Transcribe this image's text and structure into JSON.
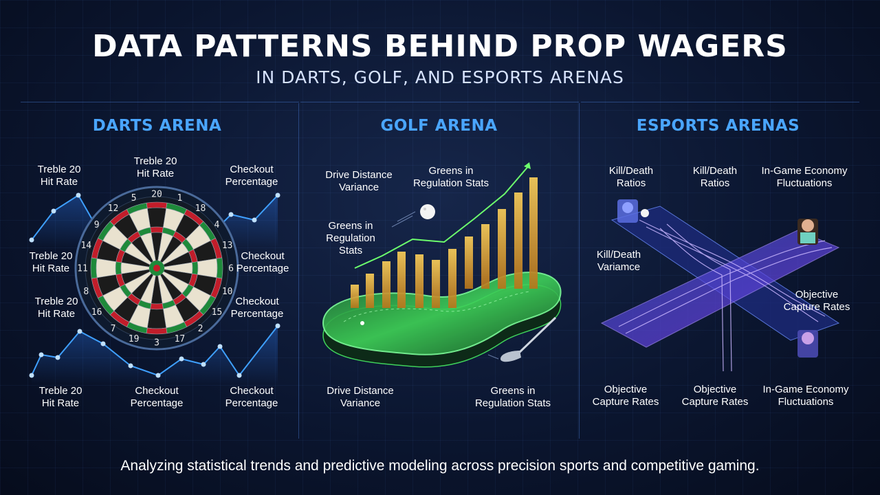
{
  "title": "DATA PATTERNS BEHIND PROP WAGERS",
  "subtitle": "IN DARTS, GOLF, AND ESPORTS ARENAS",
  "footer": "Analyzing statistical trends and predictive modeling across precision sports and competitive gaming.",
  "colors": {
    "accent": "#4aa6ff",
    "golf_green": "#3fd15a",
    "bar_gold": "#f0b13a",
    "esports_purple": "#8a5cff"
  },
  "darts": {
    "heading": "DARTS ARENA",
    "labels": [
      "Treble 20\nHit Rate",
      "Treble 20\nHit Rate",
      "Checkout\nPercentage",
      "Treble 20\nHit Rate",
      "Checkout\nPercentage",
      "Treble 20\nHit Rate",
      "Checkout\nPercentage",
      "Treble 20\nHit Rate",
      "Checkout\nPercentage",
      "Checkout\nPercentage"
    ],
    "board_numbers": [
      "20",
      "1",
      "18",
      "4",
      "13",
      "6",
      "10",
      "15",
      "2",
      "17",
      "3",
      "19",
      "7",
      "16",
      "8",
      "11",
      "14",
      "9",
      "12",
      "5"
    ]
  },
  "golf": {
    "heading": "GOLF ARENA",
    "labels": [
      "Drive Distance\nVariance",
      "Greens in\nRegulation Stats",
      "Greens in\nRegulation\nStats",
      "Drive Distance\nVariance",
      "Greens in\nRegulation Stats"
    ]
  },
  "esports": {
    "heading": "ESPORTS ARENAS",
    "labels": [
      "Kill/Death\nRatios",
      "Kill/Death\nRatios",
      "In-Game Economy\nFluctuations",
      "Kill/Death\nVariamce",
      "Objective\nCapture Rates",
      "Objective\nCapture Rates",
      "Objective\nCapture Rates",
      "In-Game Economy\nFluctuations"
    ]
  }
}
